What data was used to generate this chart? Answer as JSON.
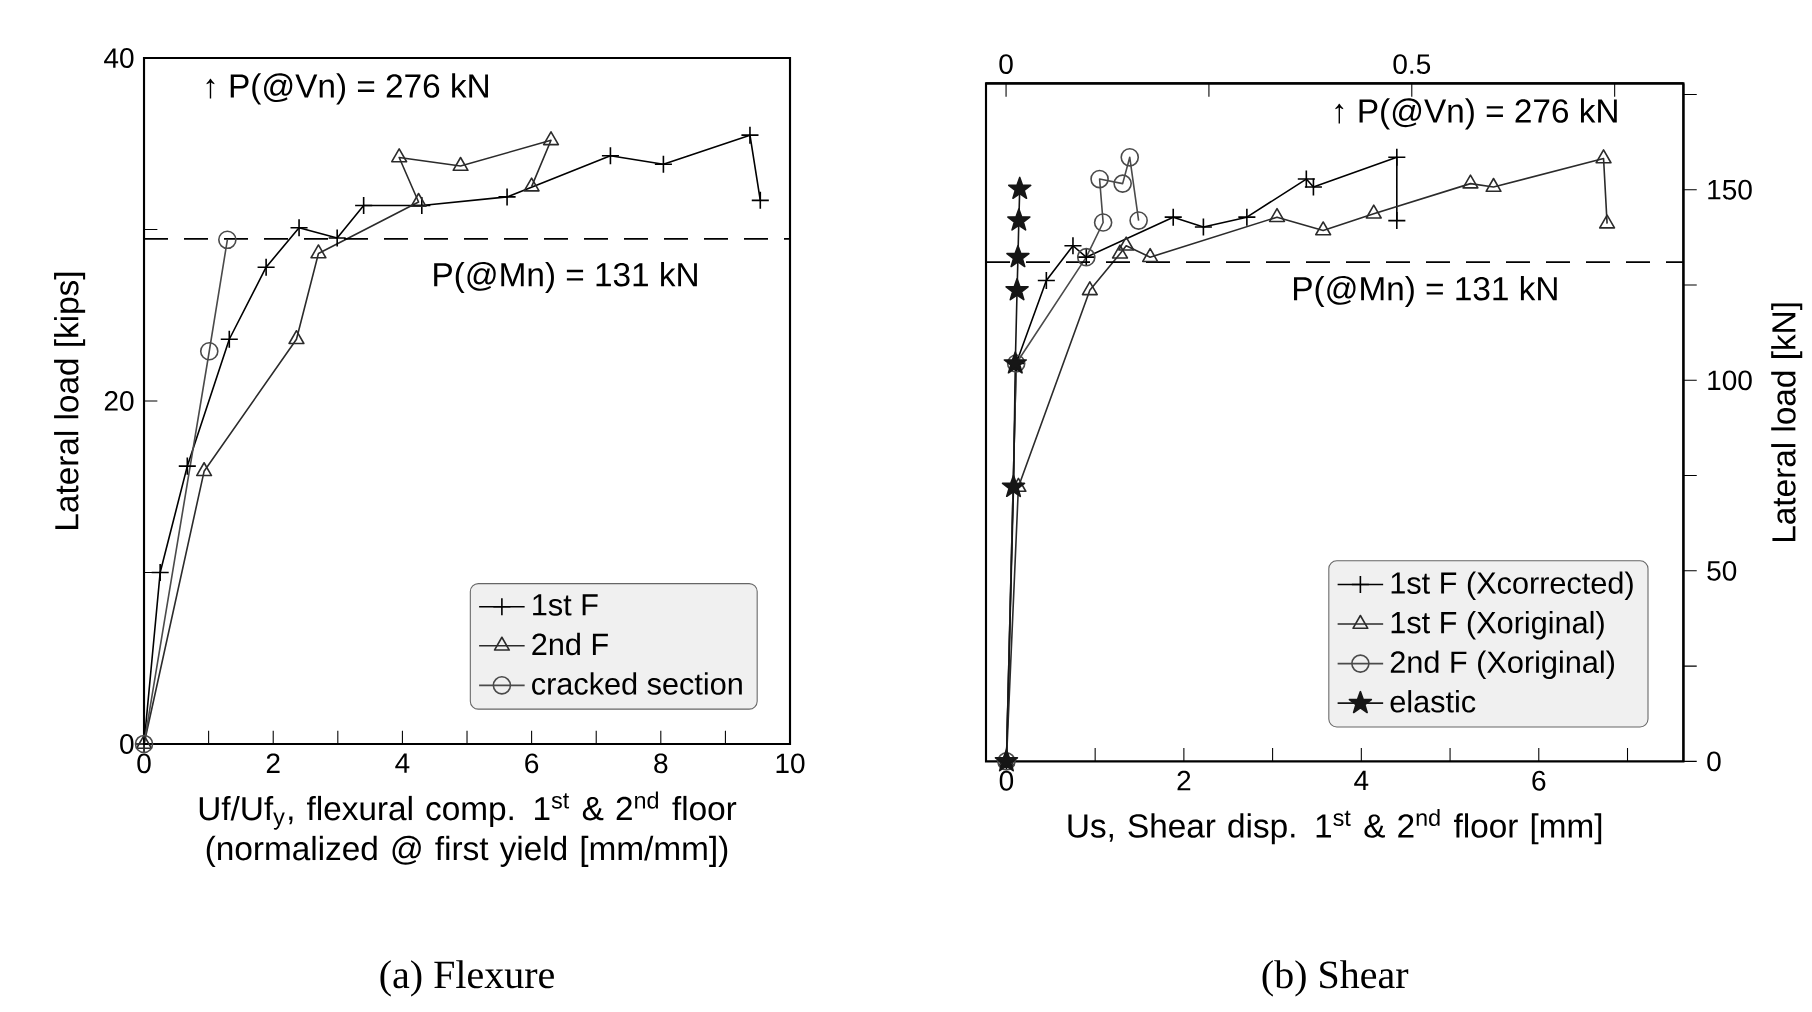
{
  "chart_data": [
    {
      "type": "line",
      "title": "(a) Flexure",
      "xlabel": "Uf/Uf$_{y}$, flexural comp. 1$^{st}$ & 2$^{nd}$ floor (normalized @ first yield [mm/mm])",
      "ylabel": "Lateral load  [kips]",
      "xlim": [
        0,
        10
      ],
      "xticks": [
        0,
        {
          "value": 1,
          "label": null
        },
        2,
        {
          "value": 3,
          "label": null
        },
        4,
        {
          "value": 5,
          "label": null
        },
        6,
        {
          "value": 7,
          "label": null
        },
        8,
        {
          "value": 9,
          "label": null
        },
        10
      ],
      "ylim": [
        0,
        40
      ],
      "yticks": [
        0,
        {
          "value": 10,
          "label": null
        },
        20,
        {
          "value": 30,
          "label": null
        },
        40
      ],
      "legend": "bottom right",
      "line_style": "solid",
      "ref_lines": [
        {
          "axis": "y",
          "value": 29.45,
          "line_style": "dashed"
        }
      ],
      "annotations": [
        "↑ P(@Vn) = 276 kN",
        "P(@Mn) = 131 kN"
      ],
      "series": [
        {
          "name": "1st F",
          "color": "#000000",
          "marker": "cross",
          "x": [
            0,
            0.25,
            0.67,
            1.32,
            1.89,
            2.4,
            2.99,
            3.4,
            4.3,
            5.62,
            7.22,
            8.04,
            9.38,
            9.54
          ],
          "values": [
            0,
            10,
            16.2,
            23.6,
            27.8,
            30.1,
            29.5,
            31.4,
            31.4,
            31.9,
            34.3,
            33.8,
            35.5,
            31.7
          ]
        },
        {
          "name": "2nd F",
          "color": "#2b2b2b",
          "marker": "triangle",
          "x": [
            0,
            0.93,
            2.36,
            2.7,
            4.25,
            3.95,
            4.9,
            6.3,
            6.0
          ],
          "values": [
            0,
            15.9,
            23.6,
            28.6,
            31.6,
            34.2,
            33.7,
            35.2,
            32.5
          ]
        },
        {
          "name": "cracked section",
          "color": "#4a4a4a",
          "marker": "circle",
          "x": [
            0,
            1.01,
            1.29
          ],
          "values": [
            0,
            22.9,
            29.4
          ]
        }
      ]
    },
    {
      "type": "line",
      "title": "(b) Shear",
      "xlabel": "Us, Shear disp. 1$^{st}$ & 2$^{nd}$ floor [mm]",
      "y2label": "Lateral load  [kN]",
      "xlim": [
        -0.23,
        7.63
      ],
      "xticks": [
        0,
        {
          "value": 1,
          "label": null
        },
        2,
        {
          "value": 3,
          "label": null
        },
        4,
        {
          "value": 5,
          "label": null
        },
        6,
        {
          "value": 7,
          "label": null
        }
      ],
      "x2lim": [
        -0.0247,
        0.8347
      ],
      "x2ticks": [
        0,
        {
          "value": 0.25,
          "label": null
        },
        0.5,
        {
          "value": 0.75,
          "label": null
        }
      ],
      "y2lim": [
        0,
        177.9
      ],
      "y2ticks": [
        0,
        {
          "value": 25,
          "label": null
        },
        50,
        {
          "value": 75,
          "label": null
        },
        100,
        {
          "value": 125,
          "label": null
        },
        150,
        {
          "value": 175,
          "label": null
        }
      ],
      "legend": "bottom right",
      "line_style": "solid",
      "ref_lines": [
        {
          "axis": "y2",
          "value": 131,
          "label": "P(@Mn) = 131 kN",
          "line_style": "dashed"
        }
      ],
      "annotations": [
        "↑ P(@Vn) = 276 kN"
      ],
      "series": [
        {
          "name": "1st F (Xcorrected)",
          "color": "#000000",
          "marker": "cross",
          "axis": "y2",
          "x": [
            0,
            0.11,
            0.45,
            0.75,
            0.9,
            1.88,
            2.22,
            2.71,
            3.38,
            3.46,
            4.4,
            4.4
          ],
          "values": [
            0,
            104.4,
            126.2,
            135.3,
            132.3,
            142.8,
            140.2,
            142.8,
            152.8,
            150.7,
            158.5,
            141.9
          ]
        },
        {
          "name": "1st F (Xoriginal)",
          "color": "#2b2b2b",
          "marker": "triangle",
          "axis": "y2",
          "x": [
            0,
            0.135,
            0.94,
            1.28,
            1.35,
            1.62,
            3.05,
            3.57,
            4.14,
            5.23,
            5.49,
            6.73,
            6.77
          ],
          "values": [
            0,
            72,
            123.6,
            133.2,
            135.3,
            132.3,
            142.8,
            139.3,
            143.7,
            151.6,
            150.7,
            158.2,
            141.1
          ]
        },
        {
          "name": "2nd F (Xoriginal)",
          "color": "#4a4a4a",
          "marker": "circle",
          "axis": "y2",
          "x": [
            0,
            0.11,
            0.9,
            1.09,
            1.05,
            1.31,
            1.39,
            1.49
          ],
          "values": [
            0,
            104.4,
            132.3,
            141.4,
            152.8,
            151.6,
            158.5,
            141.9
          ]
        },
        {
          "name": "elastic",
          "color": "#161616",
          "marker": "star",
          "axis": "y2",
          "x": [
            0,
            0.08,
            0.1,
            0.12,
            0.13,
            0.14,
            0.15
          ],
          "values": [
            0,
            72,
            104.4,
            123.6,
            132.3,
            141.9,
            150.2
          ]
        }
      ]
    }
  ]
}
